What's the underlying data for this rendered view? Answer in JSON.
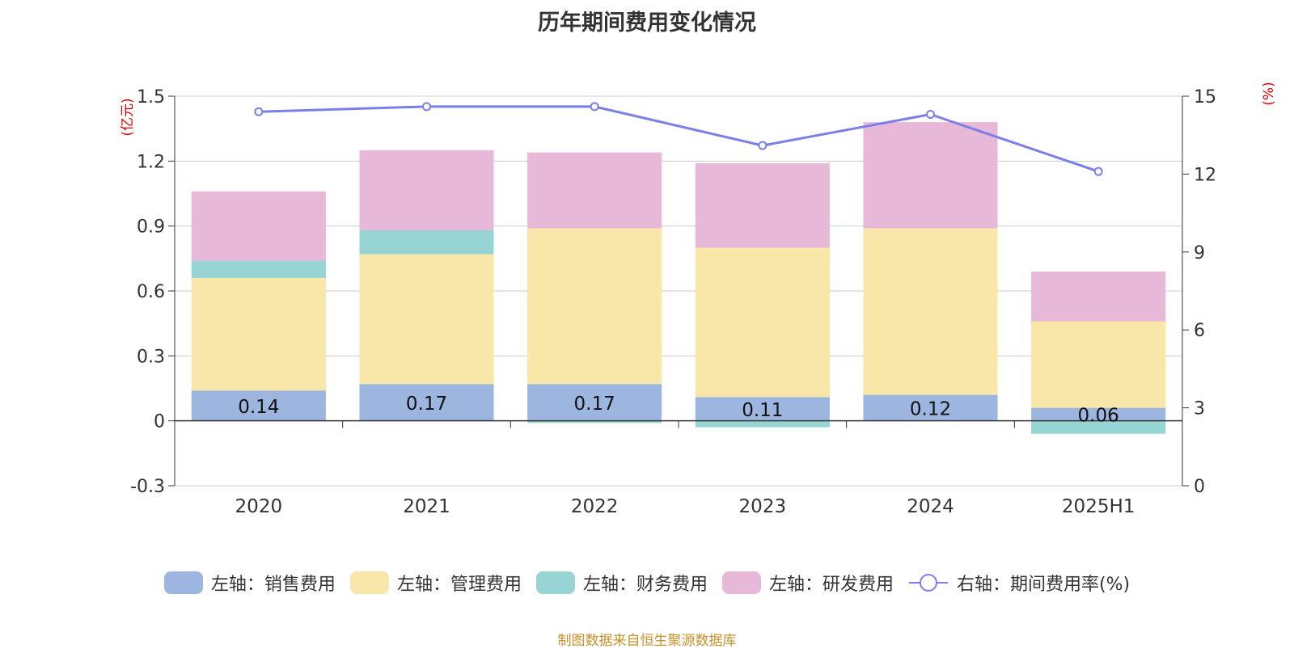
{
  "chart_data": {
    "type": "bar",
    "title": "历年期间费用变化情况",
    "categories": [
      "2020",
      "2021",
      "2022",
      "2023",
      "2024",
      "2025H1"
    ],
    "stacked": true,
    "y_left": {
      "unit_label": "(亿元)",
      "ylim": [
        -0.3,
        1.5
      ],
      "ticks": [
        "-0.3",
        "0",
        "0.3",
        "0.6",
        "0.9",
        "1.2",
        "1.5"
      ]
    },
    "y_right": {
      "unit_label": "(%)",
      "ylim": [
        0,
        15
      ],
      "ticks": [
        "0",
        "3",
        "6",
        "9",
        "12",
        "15"
      ]
    },
    "grid": true,
    "legend_position": "bottom",
    "series": [
      {
        "name": "左轴：销售费用",
        "axis": "left",
        "color": "#9db6e0",
        "values": [
          0.14,
          0.17,
          0.17,
          0.11,
          0.12,
          0.06
        ],
        "data_labels": [
          "0.14",
          "0.17",
          "0.17",
          "0.11",
          "0.12",
          "0.06"
        ]
      },
      {
        "name": "左轴：管理费用",
        "axis": "left",
        "color": "#f8e7a8",
        "values": [
          0.52,
          0.6,
          0.72,
          0.69,
          0.77,
          0.4
        ]
      },
      {
        "name": "左轴：财务费用",
        "axis": "left",
        "color": "#97d4d4",
        "values": [
          0.08,
          0.11,
          -0.01,
          -0.03,
          0.0,
          -0.06
        ]
      },
      {
        "name": "左轴：研发费用",
        "axis": "left",
        "color": "#e8b8d8",
        "values": [
          0.32,
          0.37,
          0.35,
          0.39,
          0.49,
          0.23
        ]
      },
      {
        "name": "右轴：期间费用率(%)",
        "axis": "right",
        "type": "line",
        "color": "#7b7fe8",
        "values": [
          14.4,
          14.6,
          14.6,
          13.1,
          14.3,
          12.1
        ]
      }
    ]
  },
  "source_note": "制图数据来自恒生聚源数据库"
}
